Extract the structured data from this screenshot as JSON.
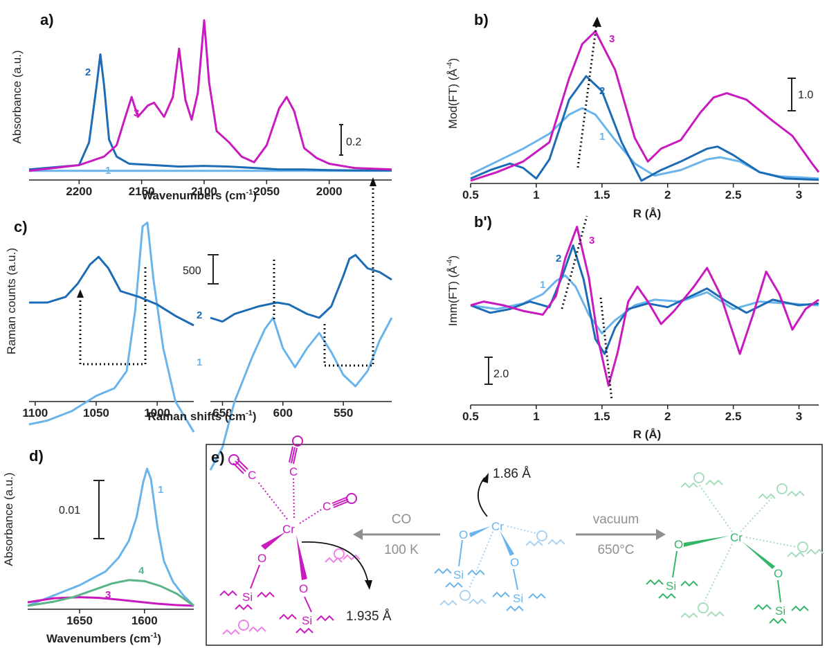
{
  "colors": {
    "c1": "#6AB4EC",
    "c2": "#1B6BB5",
    "c3": "#C81ABF",
    "c4": "#5BB488",
    "green": "#35B56A",
    "grey": "#8F8F8F",
    "pinkLight": "#F07FE9",
    "blueLight": "#A9D2F2",
    "greenLight": "#A6DDBB"
  },
  "panels": {
    "a": {
      "label": "a)",
      "ylabel": "Absorbance (a.u.)",
      "xlabel": "Wavenumbers (cm",
      "xlabel_sup": "-1",
      "xlabel_end": ")",
      "scalebar": "0.2"
    },
    "b": {
      "label": "b)",
      "ylabel": "Mod(FT) (Å",
      "ylabel_sup": "-4",
      "ylabel_end": ")",
      "xlabel": "R (Å)",
      "scalebar": "1.0"
    },
    "bp": {
      "label": "b')",
      "ylabel": "Imm(FT) (Å",
      "ylabel_sup": "-4",
      "ylabel_end": ")",
      "xlabel": "R (Å)",
      "scalebar": "2.0"
    },
    "c": {
      "label": "c)",
      "ylabel": "Raman counts (a.u.)",
      "xlabel": "Raman shifts (cm",
      "xlabel_sup": "-1",
      "xlabel_end": ")",
      "scalebar": "500"
    },
    "d": {
      "label": "d)",
      "ylabel": "Absorbance (a.u.)",
      "xlabel": "Wavenumbers (cm",
      "xlabel_sup": "-1",
      "xlabel_end": ")",
      "scalebar": "0.01"
    },
    "e": {
      "label": "e)",
      "left_arrow_top": "CO",
      "left_arrow_bottom": "100 K",
      "right_arrow_top": "vacuum",
      "right_arrow_bottom": "650°C",
      "dist_center": "1.86 Å",
      "dist_left": "1.935 Å",
      "atom_cr": "Cr",
      "atom_o": "O",
      "atom_si": "Si",
      "atom_c": "C"
    }
  },
  "chart_data": [
    {
      "panel": "a",
      "type": "line",
      "xlabel": "Wavenumbers (cm-1)",
      "ylabel": "Absorbance (a.u.)",
      "xlim": [
        2240,
        1950
      ],
      "x_reversed": true,
      "xticks": [
        2200,
        2150,
        2100,
        2050,
        2000
      ],
      "series": [
        {
          "name": "1",
          "x": [
            2240,
            1950
          ],
          "y": [
            0,
            0
          ]
        },
        {
          "name": "2",
          "x": [
            2240,
            2200,
            2192,
            2186,
            2183,
            2180,
            2176,
            2170,
            2160,
            2140,
            2120,
            2100,
            2080,
            2060,
            2040,
            2020,
            2000,
            1980,
            1950
          ],
          "y": [
            0.01,
            0.04,
            0.2,
            0.6,
            0.82,
            0.6,
            0.22,
            0.1,
            0.05,
            0.04,
            0.03,
            0.035,
            0.03,
            0.02,
            0.01,
            0.01,
            0.005,
            0.003,
            0.002
          ]
        },
        {
          "name": "3",
          "x": [
            2240,
            2200,
            2180,
            2170,
            2163,
            2158,
            2153,
            2145,
            2140,
            2132,
            2125,
            2120,
            2115,
            2110,
            2105,
            2100,
            2096,
            2090,
            2080,
            2070,
            2060,
            2050,
            2040,
            2034,
            2028,
            2020,
            2010,
            2000,
            1980,
            1950
          ],
          "y": [
            0.0,
            0.04,
            0.1,
            0.18,
            0.38,
            0.52,
            0.38,
            0.46,
            0.48,
            0.38,
            0.52,
            0.86,
            0.5,
            0.36,
            0.55,
            1.06,
            0.62,
            0.28,
            0.2,
            0.1,
            0.06,
            0.18,
            0.44,
            0.52,
            0.42,
            0.16,
            0.09,
            0.05,
            0.02,
            0.01
          ]
        }
      ]
    },
    {
      "panel": "b",
      "type": "line",
      "xlabel": "R (Å)",
      "ylabel": "Mod(FT) (Å-4)",
      "xlim": [
        0.5,
        3.15
      ],
      "xticks": [
        0.5,
        1.0,
        1.5,
        2.0,
        2.5,
        3.0
      ],
      "series": [
        {
          "name": "1",
          "x": [
            0.5,
            0.7,
            0.9,
            1.1,
            1.25,
            1.35,
            1.45,
            1.6,
            1.75,
            1.9,
            2.1,
            2.3,
            2.4,
            2.55,
            2.7,
            2.85,
            3.0,
            3.15
          ],
          "y": [
            0.15,
            0.45,
            0.75,
            1.1,
            1.55,
            1.7,
            1.55,
            0.95,
            0.4,
            0.12,
            0.25,
            0.5,
            0.55,
            0.45,
            0.2,
            0.1,
            0.08,
            0.05
          ]
        },
        {
          "name": "2",
          "x": [
            0.5,
            0.65,
            0.8,
            0.9,
            1.0,
            1.1,
            1.25,
            1.38,
            1.5,
            1.65,
            1.8,
            1.95,
            2.1,
            2.3,
            2.38,
            2.5,
            2.7,
            2.9,
            3.15
          ],
          "y": [
            0.05,
            0.25,
            0.4,
            0.3,
            0.05,
            0.5,
            1.9,
            2.45,
            2.1,
            0.9,
            0.0,
            0.25,
            0.45,
            0.75,
            0.8,
            0.6,
            0.2,
            0.05,
            0.02
          ]
        },
        {
          "name": "3",
          "x": [
            0.5,
            0.7,
            0.9,
            1.1,
            1.25,
            1.35,
            1.45,
            1.6,
            1.75,
            1.85,
            1.95,
            2.1,
            2.25,
            2.35,
            2.45,
            2.6,
            2.8,
            2.95,
            3.1,
            3.15
          ],
          "y": [
            0.0,
            0.2,
            0.45,
            0.9,
            2.4,
            3.2,
            3.5,
            2.6,
            1.0,
            0.45,
            0.75,
            0.95,
            1.6,
            1.95,
            2.05,
            1.9,
            1.4,
            1.05,
            0.4,
            0.2
          ]
        }
      ]
    },
    {
      "panel": "b'",
      "type": "line",
      "xlabel": "R (Å)",
      "ylabel": "Imm(FT) (Å-4)",
      "xlim": [
        0.5,
        3.15
      ],
      "xticks": [
        0.5,
        1.0,
        1.5,
        2.0,
        2.5,
        3.0
      ],
      "series": [
        {
          "name": "1",
          "x": [
            0.5,
            0.7,
            0.9,
            1.05,
            1.15,
            1.22,
            1.3,
            1.4,
            1.5,
            1.6,
            1.75,
            1.9,
            2.1,
            2.3,
            2.5,
            2.7,
            2.9,
            3.15
          ],
          "y": [
            0.0,
            -0.2,
            0.1,
            0.6,
            1.3,
            1.6,
            1.0,
            -0.5,
            -1.5,
            -0.8,
            0.0,
            0.3,
            0.2,
            0.7,
            -0.2,
            0.2,
            0.1,
            0.0
          ]
        },
        {
          "name": "2",
          "x": [
            0.5,
            0.65,
            0.8,
            0.95,
            1.1,
            1.2,
            1.28,
            1.36,
            1.45,
            1.52,
            1.6,
            1.7,
            1.85,
            2.0,
            2.15,
            2.3,
            2.45,
            2.6,
            2.8,
            3.0,
            3.15
          ],
          "y": [
            0.0,
            -0.4,
            -0.2,
            0.2,
            -0.1,
            1.6,
            3.2,
            1.4,
            -1.8,
            -2.6,
            -1.2,
            -0.2,
            0.1,
            -0.1,
            0.4,
            0.9,
            0.2,
            -0.4,
            0.3,
            0.0,
            0.1
          ]
        },
        {
          "name": "3",
          "x": [
            0.5,
            0.6,
            0.75,
            0.9,
            1.05,
            1.15,
            1.22,
            1.31,
            1.4,
            1.47,
            1.55,
            1.62,
            1.7,
            1.77,
            1.85,
            1.95,
            2.05,
            2.2,
            2.3,
            2.4,
            2.55,
            2.65,
            2.75,
            2.85,
            2.95,
            3.05,
            3.15
          ],
          "y": [
            0.0,
            0.2,
            0.0,
            -0.3,
            -0.5,
            0.5,
            2.5,
            4.2,
            1.5,
            -1.8,
            -4.3,
            -2.5,
            0.2,
            1.0,
            0.2,
            -1.0,
            -0.3,
            1.0,
            2.0,
            0.6,
            -2.6,
            -0.5,
            1.8,
            0.6,
            -1.3,
            -0.2,
            0.3
          ]
        }
      ]
    },
    {
      "panel": "c",
      "type": "line",
      "xlabel": "Raman shifts (cm-1)",
      "ylabel": "Raman counts (a.u.)",
      "segments": [
        {
          "xlim": [
            1105,
            970
          ],
          "xticks": [
            1100,
            1050,
            1000
          ]
        },
        {
          "xlim": [
            660,
            510
          ],
          "xticks": [
            650,
            600,
            550
          ]
        }
      ],
      "series": [
        {
          "name": "1",
          "segment": 0,
          "x": [
            1105,
            1090,
            1070,
            1050,
            1035,
            1025,
            1018,
            1012,
            1008,
            1003,
            995,
            985,
            970
          ],
          "y": [
            -260,
            -250,
            -225,
            -185,
            -165,
            -120,
            40,
            260,
            270,
            120,
            -60,
            -200,
            -280
          ]
        },
        {
          "name": "2",
          "segment": 0,
          "x": [
            1105,
            1090,
            1075,
            1065,
            1055,
            1048,
            1040,
            1030,
            1015,
            1000,
            985,
            970
          ],
          "y": [
            60,
            60,
            75,
            110,
            160,
            180,
            150,
            90,
            75,
            55,
            25,
            0
          ]
        },
        {
          "name": "1",
          "segment": 1,
          "x": [
            660,
            650,
            640,
            625,
            615,
            608,
            600,
            590,
            580,
            570,
            560,
            550,
            540,
            530,
            520,
            510
          ],
          "y": [
            -380,
            -320,
            -200,
            -80,
            -10,
            20,
            -60,
            -110,
            -60,
            -20,
            -70,
            -130,
            -160,
            -120,
            -40,
            20
          ]
        },
        {
          "name": "2",
          "segment": 1,
          "x": [
            660,
            650,
            640,
            620,
            605,
            595,
            580,
            570,
            560,
            550,
            545,
            540,
            530,
            520,
            510
          ],
          "y": [
            20,
            10,
            30,
            50,
            60,
            55,
            30,
            20,
            50,
            130,
            175,
            185,
            150,
            140,
            120
          ]
        }
      ]
    },
    {
      "panel": "d",
      "type": "line",
      "xlabel": "Wavenumbers (cm-1)",
      "ylabel": "Absorbance (a.u.)",
      "xlim": [
        1690,
        1562
      ],
      "xticks": [
        1650,
        1600
      ],
      "series": [
        {
          "name": "1",
          "x": [
            1690,
            1670,
            1650,
            1630,
            1620,
            1612,
            1606,
            1601,
            1598,
            1595,
            1590,
            1585,
            1578,
            1570,
            1562
          ],
          "y": [
            0.0,
            0.003,
            0.006,
            0.01,
            0.014,
            0.019,
            0.026,
            0.036,
            0.04,
            0.037,
            0.023,
            0.013,
            0.007,
            0.003,
            0.0
          ]
        },
        {
          "name": "3",
          "x": [
            1690,
            1670,
            1650,
            1635,
            1620,
            1605,
            1590,
            1575,
            1562
          ],
          "y": [
            0.001,
            0.0022,
            0.0025,
            0.0023,
            0.0018,
            0.0012,
            0.0006,
            0.0002,
            0.0
          ]
        },
        {
          "name": "4",
          "x": [
            1690,
            1670,
            1655,
            1640,
            1625,
            1612,
            1600,
            1588,
            1575,
            1562
          ],
          "y": [
            0.0,
            0.0012,
            0.0025,
            0.0045,
            0.0065,
            0.0075,
            0.0072,
            0.0058,
            0.0035,
            0.0
          ]
        }
      ]
    }
  ]
}
